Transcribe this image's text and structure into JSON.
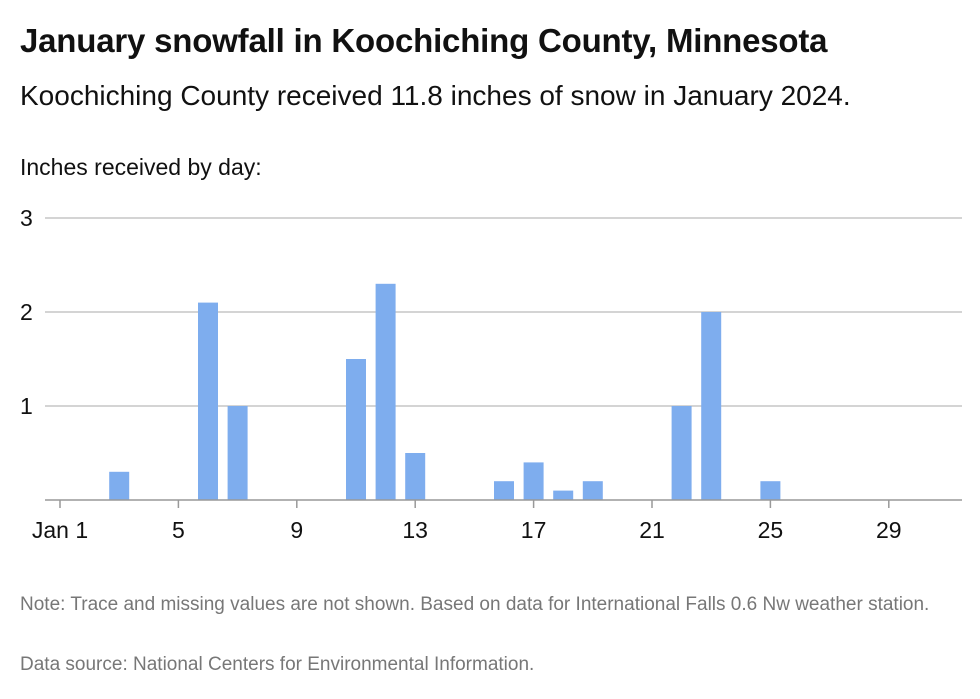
{
  "header": {
    "title": "January snowfall in Koochiching County, Minnesota",
    "subtitle": "Koochiching County received 11.8 inches of snow in January 2024.",
    "y_caption": "Inches received by day:"
  },
  "footer": {
    "note": "Note: Trace and missing values are not shown. Based on data for International Falls 0.6 Nw weather station.",
    "source": "Data source: National Centers for Environmental Information."
  },
  "colors": {
    "bar": "#7eadee",
    "grid": "#bbbbbb",
    "axis": "#999999",
    "text": "#111111",
    "muted": "#777777"
  },
  "chart_data": {
    "type": "bar",
    "title": "January snowfall in Koochiching County, Minnesota",
    "subtitle": "Koochiching County received 11.8 inches of snow in January 2024.",
    "ylabel": "Inches received by day:",
    "xlabel": "",
    "x_domain": [
      1,
      31
    ],
    "ylim": [
      0,
      3
    ],
    "y_ticks": [
      1,
      2,
      3
    ],
    "x_ticks": [
      {
        "day": 1,
        "label": "Jan 1"
      },
      {
        "day": 5,
        "label": "5"
      },
      {
        "day": 9,
        "label": "9"
      },
      {
        "day": 13,
        "label": "13"
      },
      {
        "day": 17,
        "label": "17"
      },
      {
        "day": 21,
        "label": "21"
      },
      {
        "day": 25,
        "label": "25"
      },
      {
        "day": 29,
        "label": "29"
      }
    ],
    "grid": true,
    "legend": "none",
    "points": [
      {
        "day": 3,
        "value": 0.3
      },
      {
        "day": 6,
        "value": 2.1
      },
      {
        "day": 7,
        "value": 1.0
      },
      {
        "day": 11,
        "value": 1.5
      },
      {
        "day": 12,
        "value": 2.3
      },
      {
        "day": 13,
        "value": 0.5
      },
      {
        "day": 16,
        "value": 0.2
      },
      {
        "day": 17,
        "value": 0.4
      },
      {
        "day": 18,
        "value": 0.1
      },
      {
        "day": 19,
        "value": 0.2
      },
      {
        "day": 22,
        "value": 1.0
      },
      {
        "day": 23,
        "value": 2.0
      },
      {
        "day": 25,
        "value": 0.2
      }
    ]
  }
}
